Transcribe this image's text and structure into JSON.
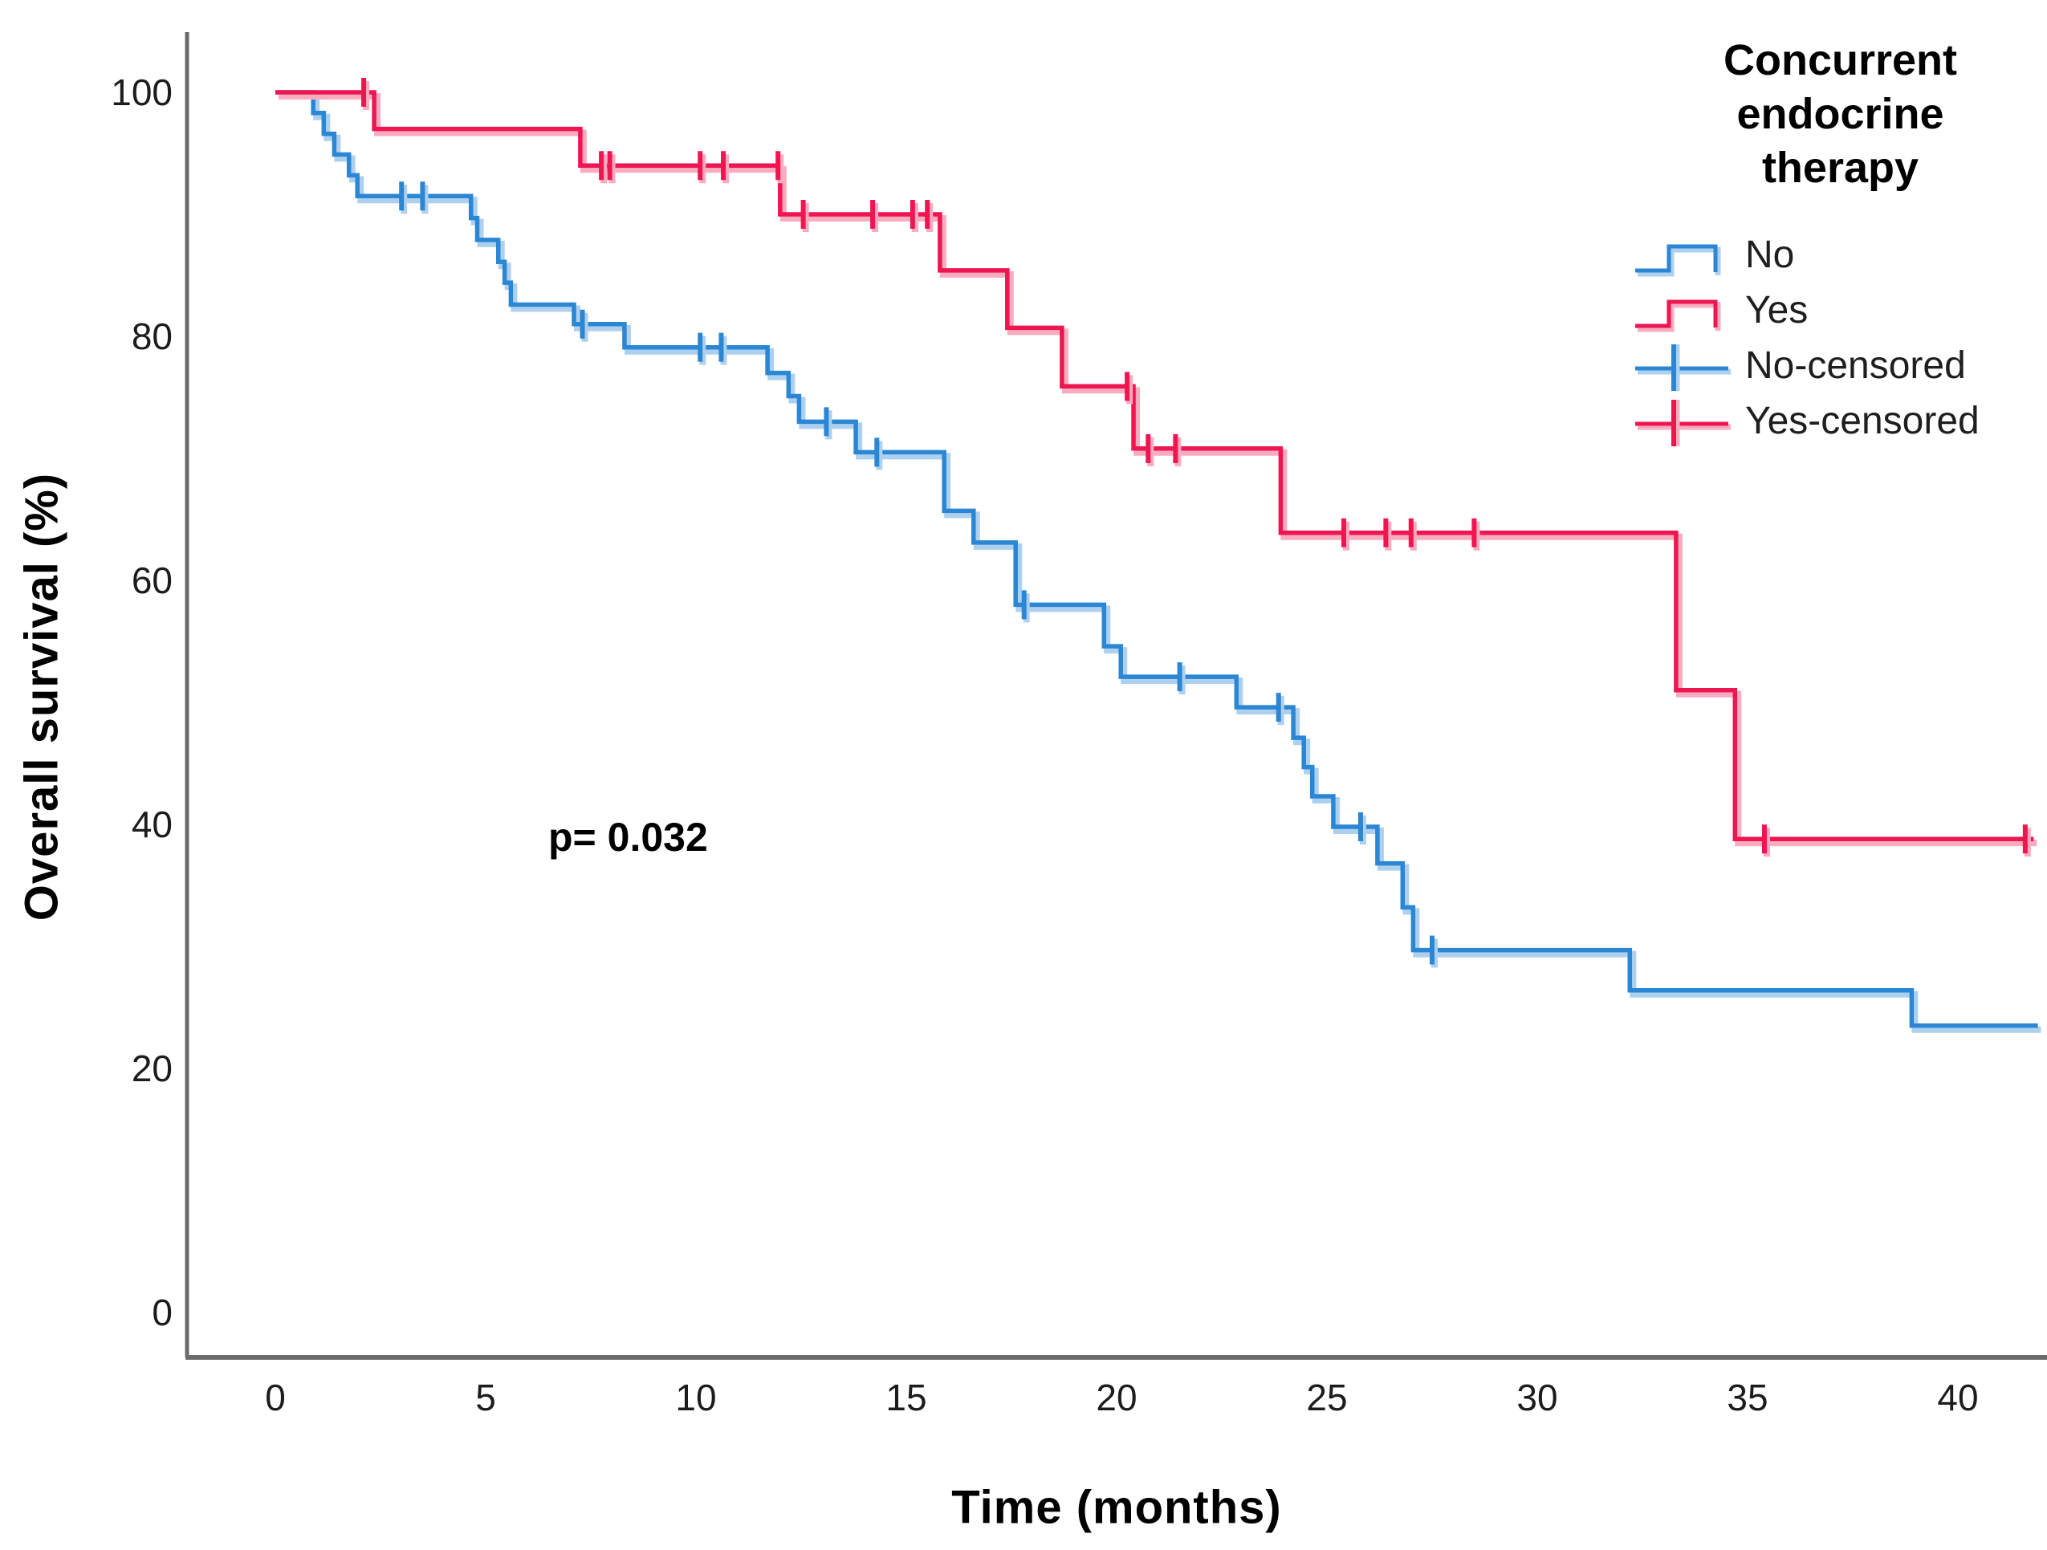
{
  "annotation": {
    "text": "p= 0.032"
  },
  "axes": {
    "x": {
      "label": "Time (months)",
      "ticks": [
        0,
        5,
        10,
        15,
        20,
        25,
        30,
        35,
        40
      ]
    },
    "y": {
      "label": "Overall survival (%)",
      "ticks": [
        0,
        20,
        40,
        60,
        80,
        100
      ]
    }
  },
  "legend": {
    "title_lines": [
      "Concurrent",
      "endocrine",
      "therapy"
    ],
    "entries": [
      {
        "label": "No",
        "glyph": "step",
        "series": "No"
      },
      {
        "label": "Yes",
        "glyph": "step",
        "series": "Yes"
      },
      {
        "label": "No-censored",
        "glyph": "censor",
        "series": "No"
      },
      {
        "label": "Yes-censored",
        "glyph": "censor",
        "series": "Yes"
      }
    ]
  },
  "colors": {
    "no_line": "#2b86d3",
    "no_halo": "#aed0ef",
    "yes_line": "#ee1651",
    "yes_halo": "#f9abc0",
    "axis_line": "#6b6b6b",
    "tick_text": "#1c1c1c",
    "text": "#000000"
  },
  "chart_data": {
    "type": "line",
    "subtype": "kaplan-meier-step",
    "title": "",
    "xlabel": "Time (months)",
    "ylabel": "Overall survival (%)",
    "xlim": [
      -2.1,
      42.2
    ],
    "ylim": [
      -3.7,
      104.9
    ],
    "xticks": [
      0,
      5,
      10,
      15,
      20,
      25,
      30,
      35,
      40
    ],
    "yticks": [
      0,
      20,
      40,
      60,
      80,
      100
    ],
    "grid": false,
    "legend_position": "top-right",
    "annotation": {
      "text": "p= 0.032",
      "x_month": 6.6,
      "y_percent": 38.5
    },
    "series": [
      {
        "name": "No",
        "color_key": "no",
        "steps": [
          [
            0,
            100
          ],
          [
            0.9,
            98.3
          ],
          [
            1.15,
            96.6
          ],
          [
            1.4,
            94.9
          ],
          [
            1.75,
            93.2
          ],
          [
            1.95,
            91.5
          ],
          [
            4.65,
            89.7
          ],
          [
            4.8,
            87.9
          ],
          [
            5.3,
            86.1
          ],
          [
            5.45,
            84.4
          ],
          [
            5.6,
            82.6
          ],
          [
            7.1,
            81.0
          ],
          [
            8.3,
            79.1
          ],
          [
            11.7,
            77.0
          ],
          [
            12.2,
            75.1
          ],
          [
            12.45,
            73.0
          ],
          [
            13.8,
            70.5
          ],
          [
            15.9,
            65.7
          ],
          [
            16.6,
            63.1
          ],
          [
            17.6,
            58.0
          ],
          [
            19.7,
            54.6
          ],
          [
            20.1,
            52.1
          ],
          [
            22.85,
            49.6
          ],
          [
            24.2,
            47.1
          ],
          [
            24.45,
            44.7
          ],
          [
            24.65,
            42.3
          ],
          [
            25.15,
            39.8
          ],
          [
            26.2,
            36.8
          ],
          [
            26.8,
            33.2
          ],
          [
            27.05,
            29.7
          ],
          [
            32.2,
            26.4
          ],
          [
            38.9,
            23.5
          ]
        ],
        "end_time": 41.9,
        "censored": [
          [
            3.0,
            91.5
          ],
          [
            3.5,
            91.5
          ],
          [
            7.3,
            81.0
          ],
          [
            10.1,
            79.1
          ],
          [
            10.6,
            79.1
          ],
          [
            13.1,
            73.0
          ],
          [
            14.3,
            70.5
          ],
          [
            17.8,
            58.0
          ],
          [
            21.5,
            52.1
          ],
          [
            23.85,
            49.6
          ],
          [
            25.8,
            39.8
          ],
          [
            27.5,
            29.7
          ]
        ]
      },
      {
        "name": "Yes",
        "color_key": "yes",
        "steps": [
          [
            0,
            100
          ],
          [
            2.35,
            97.0
          ],
          [
            7.25,
            94.0
          ],
          [
            12.0,
            90.0
          ],
          [
            15.8,
            85.4
          ],
          [
            17.4,
            80.7
          ],
          [
            18.7,
            75.9
          ],
          [
            20.4,
            70.8
          ],
          [
            23.9,
            63.9
          ],
          [
            33.3,
            51.0
          ],
          [
            34.7,
            38.8
          ]
        ],
        "end_time": 41.8,
        "censored": [
          [
            2.1,
            100
          ],
          [
            7.75,
            94.0
          ],
          [
            7.95,
            94.0
          ],
          [
            10.1,
            94.0
          ],
          [
            10.65,
            94.0
          ],
          [
            11.95,
            94.0
          ],
          [
            12.55,
            90.0
          ],
          [
            14.2,
            90.0
          ],
          [
            15.15,
            90.0
          ],
          [
            15.5,
            90.0
          ],
          [
            20.25,
            75.9
          ],
          [
            20.75,
            70.8
          ],
          [
            21.4,
            70.8
          ],
          [
            25.4,
            63.9
          ],
          [
            26.4,
            63.9
          ],
          [
            27.0,
            63.9
          ],
          [
            28.5,
            63.9
          ],
          [
            35.4,
            38.8
          ],
          [
            41.6,
            38.8
          ]
        ]
      }
    ]
  }
}
